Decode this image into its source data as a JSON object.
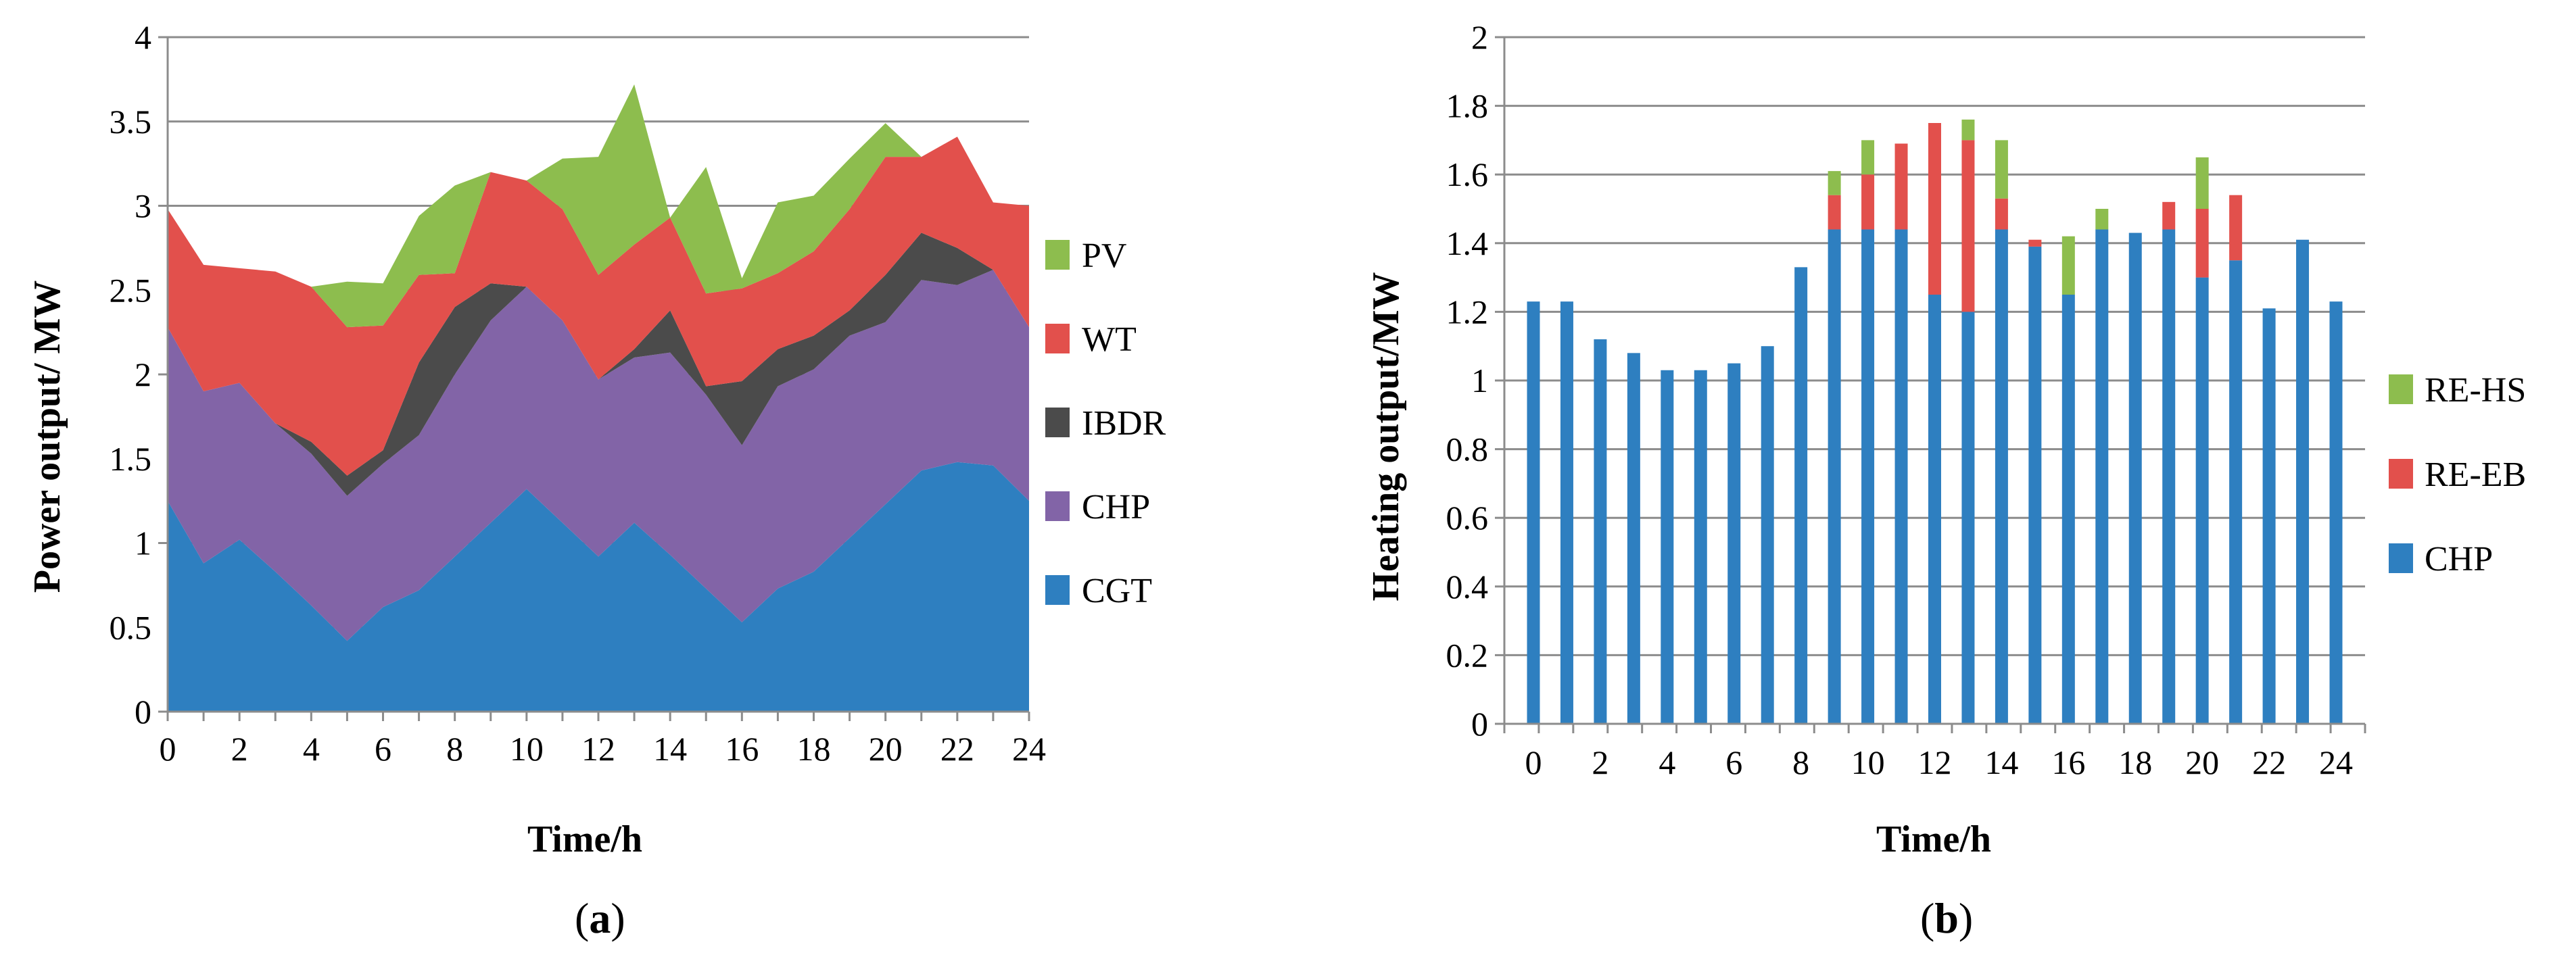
{
  "chart_data": [
    {
      "type": "area",
      "stacked": true,
      "caption": "(a)",
      "caption_letter": "a",
      "xlabel": "Time/h",
      "ylabel": "Power output/ MW",
      "xlim": [
        0,
        24
      ],
      "ylim": [
        0,
        4
      ],
      "x_ticks": [
        "0",
        "2",
        "4",
        "6",
        "8",
        "10",
        "12",
        "14",
        "16",
        "18",
        "20",
        "22",
        "24"
      ],
      "y_ticks": [
        "0",
        "0.5",
        "1",
        "1.5",
        "2",
        "2.5",
        "3",
        "3.5",
        "4"
      ],
      "grid": true,
      "legend_position": "right",
      "x": [
        0,
        1,
        2,
        3,
        4,
        5,
        6,
        7,
        8,
        9,
        10,
        11,
        12,
        13,
        14,
        15,
        16,
        17,
        18,
        19,
        20,
        21,
        22,
        23,
        24
      ],
      "series": [
        {
          "name": "CGT",
          "color": "#2e7fc0",
          "values": [
            1.25,
            0.88,
            1.02,
            0.83,
            0.63,
            0.42,
            0.62,
            0.72,
            0.92,
            1.12,
            1.32,
            1.12,
            0.92,
            1.12,
            0.93,
            0.73,
            0.53,
            0.73,
            0.83,
            1.03,
            1.23,
            1.43,
            1.48,
            1.46,
            1.25
          ]
        },
        {
          "name": "CHP",
          "color": "#8264a7",
          "values": [
            1.03,
            1.02,
            0.93,
            0.88,
            0.9,
            0.86,
            0.85,
            0.92,
            1.08,
            1.2,
            1.2,
            1.2,
            1.05,
            0.98,
            1.2,
            1.15,
            1.05,
            1.2,
            1.2,
            1.2,
            1.08,
            1.13,
            1.05,
            1.16,
            1.03
          ]
        },
        {
          "name": "IBDR",
          "color": "#4b4b4b",
          "values": [
            0,
            0,
            0,
            0,
            0.07,
            0.12,
            0.08,
            0.43,
            0.4,
            0.22,
            0,
            0,
            0,
            0.05,
            0.25,
            0.05,
            0.38,
            0.22,
            0.2,
            0.15,
            0.28,
            0.28,
            0.22,
            0,
            0
          ]
        },
        {
          "name": "WT",
          "color": "#e2504c",
          "values": [
            0.7,
            0.75,
            0.68,
            0.9,
            0.92,
            0.88,
            0.74,
            0.52,
            0.2,
            0.66,
            0.63,
            0.66,
            0.62,
            0.62,
            0.55,
            0.55,
            0.55,
            0.45,
            0.5,
            0.6,
            0.7,
            0.45,
            0.66,
            0.4,
            0.72
          ]
        },
        {
          "name": "PV",
          "color": "#8dbd4e",
          "values": [
            0,
            0,
            0,
            0,
            0,
            0.27,
            0.25,
            0.35,
            0.52,
            0,
            0,
            0.3,
            0.7,
            0.95,
            0,
            0.75,
            0.06,
            0.42,
            0.33,
            0.3,
            0.2,
            0,
            0,
            0,
            0
          ]
        }
      ]
    },
    {
      "type": "bar",
      "stacked": true,
      "caption": "(b)",
      "caption_letter": "b",
      "xlabel": "Time/h",
      "ylabel": "Heating output/MW",
      "xlim": [
        0,
        24
      ],
      "ylim": [
        0,
        2
      ],
      "x_ticks": [
        "0",
        "2",
        "4",
        "6",
        "8",
        "10",
        "12",
        "14",
        "16",
        "18",
        "20",
        "22",
        "24"
      ],
      "y_ticks": [
        "0",
        "0.2",
        "0.4",
        "0.6",
        "0.8",
        "1",
        "1.2",
        "1.4",
        "1.6",
        "1.8",
        "2"
      ],
      "grid": true,
      "legend_position": "right",
      "x": [
        0,
        1,
        2,
        3,
        4,
        5,
        6,
        7,
        8,
        9,
        10,
        11,
        12,
        13,
        14,
        15,
        16,
        17,
        18,
        19,
        20,
        21,
        22,
        23,
        24
      ],
      "series": [
        {
          "name": "CHP",
          "color": "#2e7fc0",
          "values": [
            1.23,
            1.23,
            1.12,
            1.08,
            1.03,
            1.03,
            1.05,
            1.1,
            1.33,
            1.44,
            1.44,
            1.44,
            1.25,
            1.2,
            1.44,
            1.39,
            1.25,
            1.44,
            1.43,
            1.44,
            1.3,
            1.35,
            1.21,
            1.41,
            1.23
          ]
        },
        {
          "name": "RE-EB",
          "color": "#e2504c",
          "values": [
            0,
            0,
            0,
            0,
            0,
            0,
            0,
            0,
            0,
            0.1,
            0.16,
            0.25,
            0.5,
            0.5,
            0.09,
            0.02,
            0,
            0,
            0,
            0.08,
            0.2,
            0.19,
            0,
            0,
            0
          ]
        },
        {
          "name": "RE-HS",
          "color": "#8dbd4e",
          "values": [
            0,
            0,
            0,
            0,
            0,
            0,
            0,
            0,
            0,
            0.07,
            0.1,
            0,
            0,
            0.06,
            0.17,
            0,
            0.17,
            0.06,
            0,
            0,
            0.15,
            0,
            0,
            0,
            0
          ]
        }
      ]
    }
  ]
}
